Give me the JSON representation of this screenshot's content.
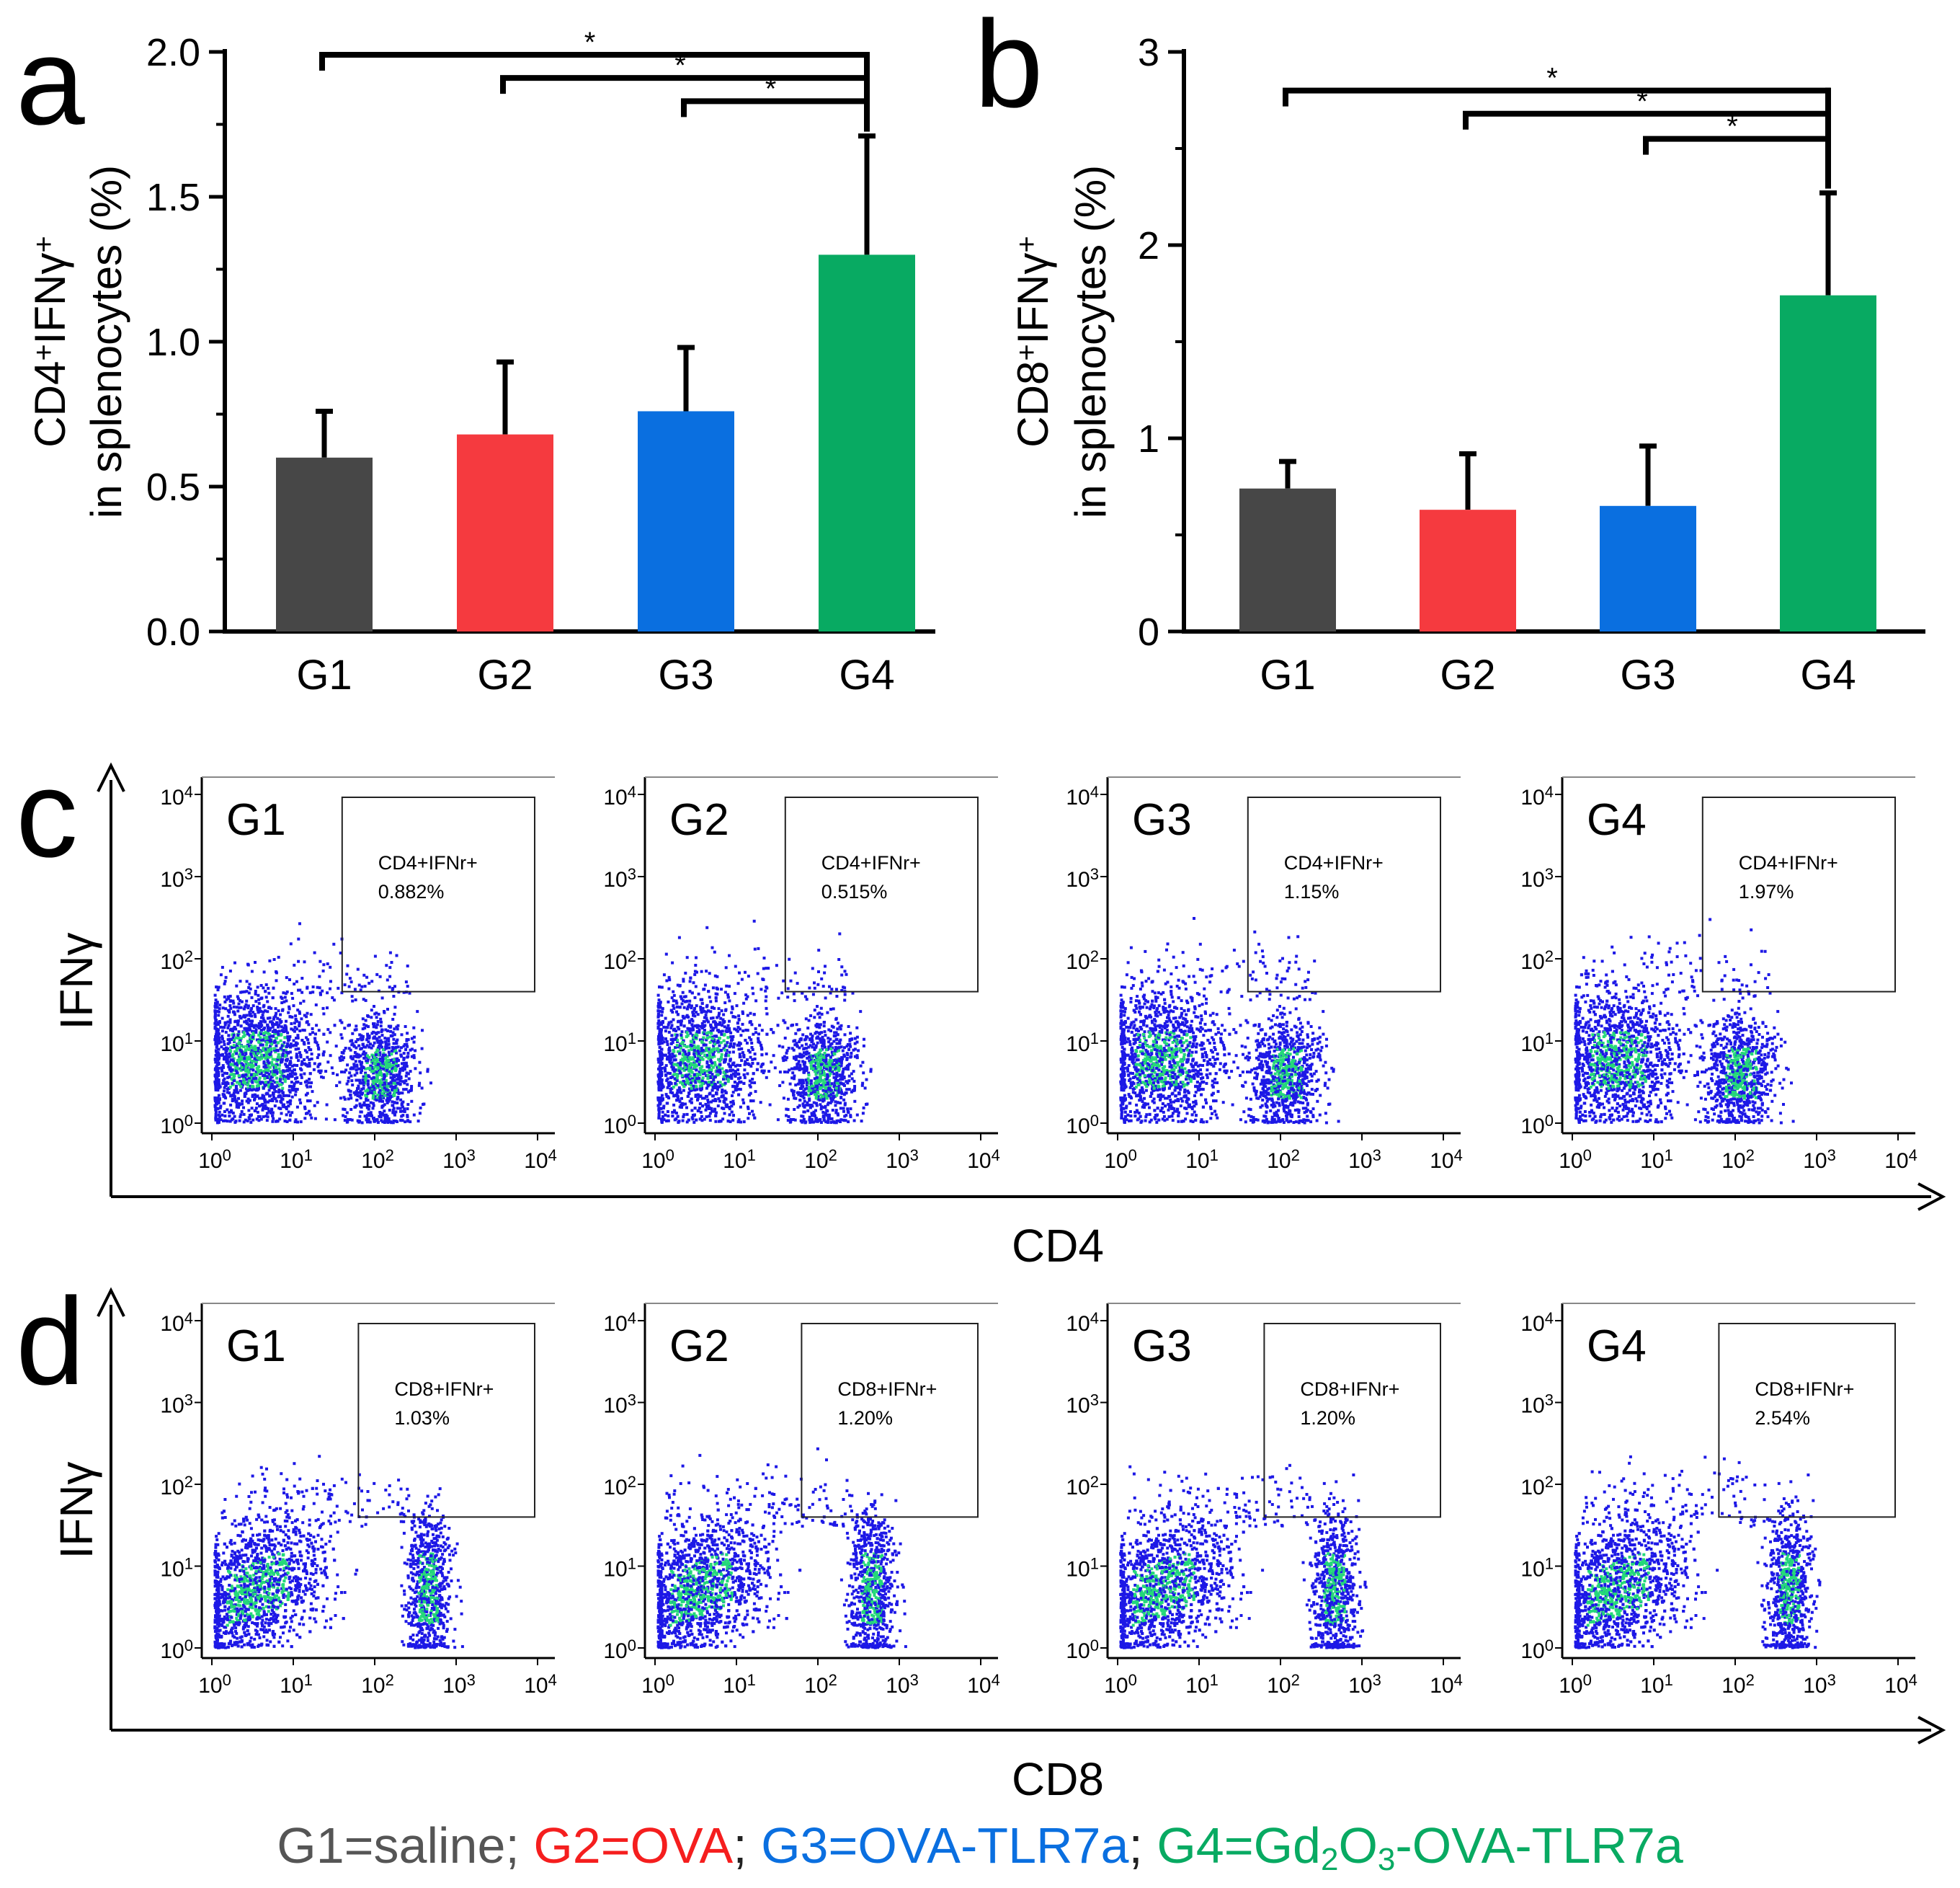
{
  "figure": {
    "panel_letters": [
      "a",
      "b",
      "c",
      "d"
    ],
    "colors": {
      "G1": "#474747",
      "G2": "#f53a3f",
      "G3": "#0a6fe0",
      "G4": "#08aa62",
      "dots": "#1d18e6",
      "dense": "#25d87a",
      "axis": "#000000"
    }
  },
  "chart_data": [
    {
      "panel": "a",
      "type": "bar",
      "categories": [
        "G1",
        "G2",
        "G3",
        "G4"
      ],
      "values": [
        0.6,
        0.68,
        0.76,
        1.3
      ],
      "errors": [
        0.16,
        0.25,
        0.22,
        0.41
      ],
      "ylabel_line1": "CD4",
      "ylabel_sup1": "+",
      "ylabel_mid": "IFNγ",
      "ylabel_sup2": "+",
      "ylabel_line2": "in splenocytes (%)",
      "ylim": [
        0,
        2.0
      ],
      "yticks": [
        "0.0",
        "0.5",
        "1.0",
        "1.5",
        "2.0"
      ],
      "significance": [
        {
          "from": "G1",
          "to": "G4",
          "level": 1.99,
          "label": "*"
        },
        {
          "from": "G2",
          "to": "G4",
          "level": 1.91,
          "label": "*"
        },
        {
          "from": "G3",
          "to": "G4",
          "level": 1.83,
          "label": "*"
        }
      ]
    },
    {
      "panel": "b",
      "type": "bar",
      "categories": [
        "G1",
        "G2",
        "G3",
        "G4"
      ],
      "values": [
        0.74,
        0.63,
        0.65,
        1.74
      ],
      "errors": [
        0.14,
        0.29,
        0.31,
        0.53
      ],
      "ylabel_line1": "CD8",
      "ylabel_sup1": "+",
      "ylabel_mid": "IFNγ",
      "ylabel_sup2": "+",
      "ylabel_line2": "in splenocytes (%)",
      "ylim": [
        0,
        3
      ],
      "yticks": [
        "0",
        "1",
        "2",
        "3"
      ],
      "significance": [
        {
          "from": "G1",
          "to": "G4",
          "level": 2.8,
          "label": "*"
        },
        {
          "from": "G2",
          "to": "G4",
          "level": 2.68,
          "label": "*"
        },
        {
          "from": "G3",
          "to": "G4",
          "level": 2.55,
          "label": "*"
        }
      ]
    },
    {
      "panel": "c",
      "type": "scatter",
      "xlabel": "CD4",
      "ylabel": "IFNγ",
      "axis_range": [
        0,
        4
      ],
      "tick_labels": [
        "10",
        "10",
        "10",
        "10",
        "10"
      ],
      "tick_exponents": [
        "0",
        "1",
        "2",
        "3",
        "4"
      ],
      "gate_range": {
        "x": [
          1.6,
          4.0
        ],
        "y": [
          1.6,
          4.0
        ]
      },
      "plots": [
        {
          "group": "G1",
          "gate_label": "CD4+IFNr+",
          "percent": "0.882%"
        },
        {
          "group": "G2",
          "gate_label": "CD4+IFNr+",
          "percent": "0.515%"
        },
        {
          "group": "G3",
          "gate_label": "CD4+IFNr+",
          "percent": "1.15%"
        },
        {
          "group": "G4",
          "gate_label": "CD4+IFNr+",
          "percent": "1.97%"
        }
      ]
    },
    {
      "panel": "d",
      "type": "scatter",
      "xlabel": "CD8",
      "ylabel": "IFNγ",
      "axis_range": [
        0,
        4
      ],
      "tick_labels": [
        "10",
        "10",
        "10",
        "10",
        "10"
      ],
      "tick_exponents": [
        "0",
        "1",
        "2",
        "3",
        "4"
      ],
      "gate_range": {
        "x": [
          1.8,
          4.0
        ],
        "y": [
          1.6,
          4.0
        ]
      },
      "plots": [
        {
          "group": "G1",
          "gate_label": "CD8+IFNr+",
          "percent": "1.03%"
        },
        {
          "group": "G2",
          "gate_label": "CD8+IFNr+",
          "percent": "1.20%"
        },
        {
          "group": "G3",
          "gate_label": "CD8+IFNr+",
          "percent": "1.20%"
        },
        {
          "group": "G4",
          "gate_label": "CD8+IFNr+",
          "percent": "2.54%"
        }
      ]
    }
  ],
  "legend": [
    {
      "text": "G1=saline; ",
      "color": "#555555"
    },
    {
      "text": "G2=OVA",
      "color": "#f51e1e"
    },
    {
      "text": "; ",
      "color": "#222222"
    },
    {
      "text": "G3=OVA-TLR7a",
      "color": "#0a6fe0"
    },
    {
      "text": "; ",
      "color": "#222222"
    },
    {
      "text": "G4=Gd",
      "color": "#08aa62"
    },
    {
      "text": "2",
      "color": "#08aa62",
      "sub": true
    },
    {
      "text": "O",
      "color": "#08aa62"
    },
    {
      "text": "3",
      "color": "#08aa62",
      "sub": true
    },
    {
      "text": "-OVA-TLR7a",
      "color": "#08aa62"
    }
  ]
}
